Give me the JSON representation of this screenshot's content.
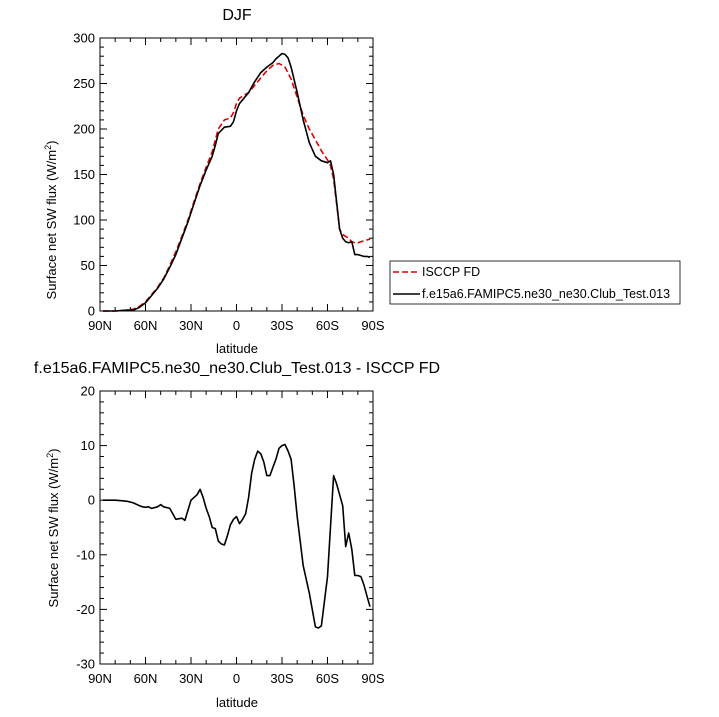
{
  "chart_data": [
    {
      "type": "line",
      "title": "DJF",
      "xlabel": "latitude",
      "ylabel": "Surface net SW flux (W/m²)",
      "ylabel_main": "Surface net SW flux (W/m",
      "ylabel_sup": "2",
      "ylabel_end": ")",
      "xlim": [
        90,
        -90
      ],
      "ylim": [
        0,
        300
      ],
      "x_ticks": [
        90,
        60,
        30,
        0,
        -30,
        -60,
        -90
      ],
      "x_tick_labels": [
        "90N",
        "60N",
        "30N",
        "0",
        "30S",
        "60S",
        "90S"
      ],
      "y_ticks": [
        0,
        50,
        100,
        150,
        200,
        250,
        300
      ],
      "y_tick_labels": [
        "0",
        "50",
        "100",
        "150",
        "200",
        "250",
        "300"
      ],
      "grid": false,
      "legend_placement": "right",
      "series": [
        {
          "name": "ISCCP FD",
          "color": "#e00000",
          "dash": "dashed",
          "x": [
            88,
            80,
            72,
            68,
            64,
            60,
            56,
            52,
            48,
            44,
            40,
            36,
            32,
            28,
            24,
            20,
            16,
            14,
            12,
            8,
            4,
            2,
            0,
            -2,
            -4,
            -8,
            -12,
            -16,
            -20,
            -24,
            -28,
            -32,
            -36,
            -40,
            -44,
            -48,
            -52,
            -56,
            -60,
            -62,
            -64,
            -66,
            -68,
            -70,
            -72,
            -74,
            -76,
            -78,
            -80,
            -82,
            -84,
            -86,
            -88
          ],
          "y": [
            0,
            0,
            1,
            2,
            5,
            10,
            18,
            26,
            36,
            50,
            65,
            82,
            100,
            120,
            140,
            158,
            175,
            188,
            200,
            210,
            212,
            218,
            228,
            234,
            236,
            240,
            248,
            256,
            264,
            270,
            272,
            268,
            255,
            235,
            215,
            200,
            188,
            176,
            166,
            160,
            145,
            118,
            90,
            84,
            82,
            80,
            76,
            75,
            75,
            76,
            77,
            78,
            79
          ]
        },
        {
          "name": "f.e15a6.FAMIPC5.ne30_ne30.Club_Test.013",
          "color": "#000000",
          "dash": "solid",
          "x": [
            88,
            80,
            72,
            68,
            64,
            60,
            56,
            52,
            48,
            44,
            40,
            36,
            32,
            28,
            24,
            20,
            16,
            14,
            12,
            8,
            4,
            2,
            0,
            -2,
            -4,
            -8,
            -12,
            -16,
            -20,
            -24,
            -26,
            -28,
            -30,
            -32,
            -34,
            -36,
            -40,
            -44,
            -48,
            -52,
            -56,
            -60,
            -62,
            -64,
            -66,
            -68,
            -70,
            -72,
            -74,
            -76,
            -78,
            -80,
            -82,
            -84,
            -86,
            -88
          ],
          "y": [
            0,
            0,
            1,
            1,
            4,
            9,
            17,
            25,
            35,
            48,
            62,
            80,
            98,
            118,
            138,
            155,
            170,
            182,
            195,
            202,
            203,
            208,
            220,
            228,
            232,
            240,
            252,
            262,
            268,
            273,
            277,
            280,
            283,
            282,
            278,
            268,
            240,
            210,
            185,
            170,
            165,
            163,
            165,
            150,
            120,
            90,
            80,
            76,
            75,
            76,
            62,
            62,
            61,
            60,
            60,
            59
          ]
        }
      ]
    },
    {
      "type": "line",
      "title": "f.e15a6.FAMIPC5.ne30_ne30.Club_Test.013 - ISCCP FD",
      "xlabel": "latitude",
      "ylabel": "Surface net SW flux (W/m²)",
      "ylabel_main": "Surface net SW flux (W/m",
      "ylabel_sup": "2",
      "ylabel_end": ")",
      "xlim": [
        90,
        -90
      ],
      "ylim": [
        -30,
        20
      ],
      "x_ticks": [
        90,
        60,
        30,
        0,
        -30,
        -60,
        -90
      ],
      "x_tick_labels": [
        "90N",
        "60N",
        "30N",
        "0",
        "30S",
        "60S",
        "90S"
      ],
      "y_ticks": [
        -30,
        -20,
        -10,
        0,
        10,
        20
      ],
      "y_tick_labels": [
        "-30",
        "-20",
        "-10",
        "0",
        "10",
        "20"
      ],
      "grid": false,
      "series": [
        {
          "name": "",
          "color": "#000000",
          "dash": "solid",
          "x": [
            88,
            80,
            76,
            72,
            68,
            64,
            62,
            60,
            58,
            56,
            52,
            50,
            48,
            44,
            40,
            36,
            34,
            30,
            26,
            24,
            22,
            20,
            18,
            16,
            14,
            12,
            10,
            8,
            6,
            4,
            2,
            0,
            -2,
            -4,
            -6,
            -8,
            -10,
            -12,
            -14,
            -16,
            -18,
            -20,
            -22,
            -24,
            -26,
            -28,
            -30,
            -32,
            -34,
            -36,
            -38,
            -40,
            -44,
            -48,
            -52,
            -54,
            -56,
            -60,
            -64,
            -66,
            -68,
            -70,
            -72,
            -74,
            -76,
            -78,
            -80,
            -82,
            -84,
            -86,
            -88
          ],
          "y": [
            0,
            0,
            -0.1,
            -0.2,
            -0.5,
            -1,
            -1.2,
            -1.3,
            -1.2,
            -1.5,
            -1.2,
            -0.8,
            -1.2,
            -1.5,
            -3.5,
            -3.3,
            -3.7,
            0,
            1,
            2,
            0.5,
            -1.5,
            -3,
            -5,
            -5.2,
            -7.5,
            -8,
            -8.2,
            -6.5,
            -4.5,
            -3.5,
            -3,
            -4.3,
            -3.5,
            -2.5,
            0.5,
            5,
            7.5,
            9,
            8.5,
            7,
            4.5,
            4.5,
            6,
            7.5,
            9.5,
            10,
            10.2,
            9,
            7.5,
            2.7,
            -3,
            -12,
            -17,
            -23.2,
            -23.4,
            -23,
            -14,
            4.5,
            3,
            1,
            -1,
            -8.5,
            -6,
            -9,
            -13.8,
            -13.8,
            -14,
            -15.5,
            -17.5,
            -19.5
          ]
        }
      ]
    }
  ]
}
